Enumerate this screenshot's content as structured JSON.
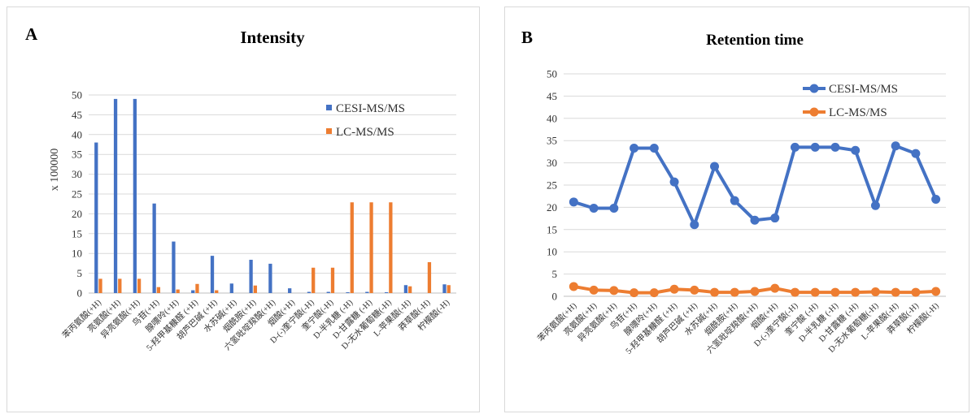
{
  "chart_data": [
    {
      "panel_letter": "A",
      "type": "bar",
      "title": "Intensity",
      "ylabel": "x 100000",
      "xlabel": "",
      "ylim": [
        0,
        50
      ],
      "yticks": [
        0,
        5,
        10,
        15,
        20,
        25,
        30,
        35,
        40,
        45,
        50
      ],
      "grid": true,
      "legend_position": "top-right",
      "categories": [
        "苯丙氨酸(+H)",
        "亮氨酸(+H)",
        "异亮氨酸(+H)",
        "鸟苷(+H)",
        "腺嘌呤(+H)",
        "5-羟甲基糠醛 (+H)",
        "胡芦巴碱 (+H)",
        "水苏碱(+H)",
        "烟酰胺(+H)",
        "六氢吡啶羧酸(+H)",
        "烟酸(+H)",
        "D-(-)奎宁酸(-H)",
        "奎宁酸(-H)",
        "D-半乳糖 (-H)",
        "D-甘露糖 (-H)",
        "D-无水葡萄糖(-H)",
        "L-苹果酸(-H)",
        "莽草酸(-H)",
        "柠檬酸(-H)"
      ],
      "series": [
        {
          "name": "CESI-MS/MS",
          "color": "#4472C4",
          "values": [
            38,
            49,
            49,
            22.6,
            13,
            0.7,
            9.4,
            2.4,
            8.4,
            7.4,
            1.2,
            0.3,
            0.3,
            0.2,
            0.3,
            0.2,
            2,
            0,
            2.2
          ]
        },
        {
          "name": "LC-MS/MS",
          "color": "#ED7D31",
          "values": [
            3.6,
            3.6,
            3.6,
            1.5,
            0.9,
            2.3,
            0.7,
            0,
            1.9,
            0,
            0,
            6.4,
            6.4,
            22.9,
            22.9,
            22.9,
            1.7,
            7.8,
            2
          ]
        }
      ]
    },
    {
      "panel_letter": "B",
      "type": "line",
      "title": "Retention time",
      "xlabel": "",
      "ylabel": "",
      "ylim": [
        0,
        50
      ],
      "yticks": [
        0,
        5,
        10,
        15,
        20,
        25,
        30,
        35,
        40,
        45,
        50
      ],
      "grid": true,
      "legend_position": "top-right",
      "categories": [
        "苯丙氨酸(+H)",
        "亮氨酸(+H)",
        "异亮氨酸(+H)",
        "鸟苷(+H)",
        "腺嘌呤(+H)",
        "5-羟甲基糠醛 (+H)",
        "胡芦巴碱 (+H)",
        "水苏碱(+H)",
        "烟酰胺(+H)",
        "六氢吡啶羧酸(+H)",
        "烟酸(+H)",
        "D-(-)奎宁酸(-H)",
        "奎宁酸 (-H)",
        "D-半乳糖 (-H)",
        "D-甘露糖 (-H)",
        "D-无水葡萄糖(-H)",
        "L-苹果酸(-H)",
        "莽草酸(-H)",
        "柠檬酸(-H)"
      ],
      "series": [
        {
          "name": "CESI-MS/MS",
          "color": "#4472C4",
          "values": [
            21.2,
            19.8,
            19.8,
            33.3,
            33.3,
            25.7,
            16.1,
            29.2,
            21.5,
            17.1,
            17.6,
            33.5,
            33.5,
            33.5,
            32.8,
            20.4,
            33.8,
            32.1,
            21.8
          ]
        },
        {
          "name": "LC-MS/MS",
          "color": "#ED7D31",
          "values": [
            2.2,
            1.4,
            1.3,
            0.8,
            0.8,
            1.6,
            1.4,
            0.9,
            0.9,
            1.1,
            1.8,
            0.9,
            0.9,
            0.9,
            0.9,
            1.0,
            0.9,
            0.9,
            1.1
          ]
        }
      ]
    }
  ]
}
